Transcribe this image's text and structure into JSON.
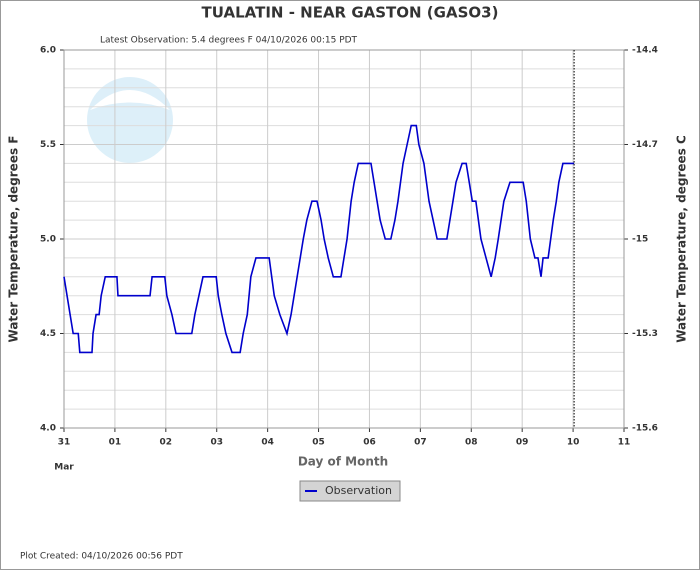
{
  "chart_data": {
    "type": "line",
    "title": "TUALATIN - NEAR GASTON  (GASO3)",
    "subtitle": "Latest Observation: 5.4 degrees F 04/10/2026 00:15 PDT",
    "xlabel": "Day of Month",
    "xlabel_month": "Mar",
    "ylabel": "Water Temperature, degrees F",
    "y2label": "Water Temperature, degrees C",
    "footer": "Plot Created: 04/10/2026 00:56 PDT",
    "xlim": [
      0,
      11
    ],
    "xticks": [
      {
        "value": 0,
        "label": "31"
      },
      {
        "value": 1,
        "label": "01"
      },
      {
        "value": 2,
        "label": "02"
      },
      {
        "value": 3,
        "label": "03"
      },
      {
        "value": 4,
        "label": "04"
      },
      {
        "value": 5,
        "label": "05"
      },
      {
        "value": 6,
        "label": "06"
      },
      {
        "value": 7,
        "label": "07"
      },
      {
        "value": 8,
        "label": "08"
      },
      {
        "value": 9,
        "label": "09"
      },
      {
        "value": 10,
        "label": "10"
      },
      {
        "value": 11,
        "label": "11"
      }
    ],
    "ylim": [
      4.0,
      6.0
    ],
    "yticks": [
      {
        "value": 4.0,
        "label": "4.0"
      },
      {
        "value": 4.5,
        "label": "4.5"
      },
      {
        "value": 5.0,
        "label": "5.0"
      },
      {
        "value": 5.5,
        "label": "5.5"
      },
      {
        "value": 6.0,
        "label": "6.0"
      }
    ],
    "yminor": [
      4.1,
      4.2,
      4.3,
      4.4,
      4.6,
      4.7,
      4.8,
      4.9,
      5.1,
      5.2,
      5.3,
      5.4,
      5.6,
      5.7,
      5.8,
      5.9
    ],
    "y2lim": [
      -15.6,
      -14.4
    ],
    "y2ticks": [
      -15.6,
      -15.3,
      -15,
      -14.7,
      -14.4
    ],
    "grid": true,
    "latest_x": 10.02,
    "series": [
      {
        "name": "Observation",
        "color": "#0000cc",
        "x": [
          0,
          0.12,
          0.18,
          0.28,
          0.31,
          0.55,
          0.57,
          0.63,
          0.69,
          0.73,
          0.81,
          1.04,
          1.06,
          1.69,
          1.73,
          1.98,
          2.02,
          2.12,
          2.2,
          2.51,
          2.57,
          2.65,
          2.73,
          2.99,
          3.03,
          3.1,
          3.18,
          3.3,
          3.46,
          3.52,
          3.6,
          3.67,
          3.77,
          4.03,
          4.13,
          4.24,
          4.38,
          4.46,
          4.58,
          4.7,
          4.77,
          4.87,
          4.97,
          5.05,
          5.11,
          5.19,
          5.29,
          5.44,
          5.5,
          5.56,
          5.64,
          5.7,
          5.78,
          6.03,
          6.09,
          6.15,
          6.21,
          6.31,
          6.42,
          6.5,
          6.56,
          6.66,
          6.74,
          6.82,
          6.92,
          6.97,
          7.07,
          7.17,
          7.25,
          7.33,
          7.52,
          7.58,
          7.64,
          7.7,
          7.82,
          7.9,
          7.96,
          8.02,
          8.09,
          8.19,
          8.29,
          8.39,
          8.47,
          8.53,
          8.64,
          8.76,
          9.02,
          9.08,
          9.16,
          9.25,
          9.31,
          9.37,
          9.41,
          9.51,
          9.61,
          9.67,
          9.72,
          9.8,
          10.02
        ],
        "values": [
          4.8,
          4.6,
          4.5,
          4.5,
          4.4,
          4.4,
          4.5,
          4.6,
          4.6,
          4.7,
          4.8,
          4.8,
          4.7,
          4.7,
          4.8,
          4.8,
          4.7,
          4.6,
          4.5,
          4.5,
          4.6,
          4.7,
          4.8,
          4.8,
          4.7,
          4.6,
          4.5,
          4.4,
          4.4,
          4.5,
          4.6,
          4.8,
          4.9,
          4.9,
          4.7,
          4.6,
          4.5,
          4.6,
          4.8,
          5.0,
          5.1,
          5.2,
          5.2,
          5.1,
          5.0,
          4.9,
          4.8,
          4.8,
          4.9,
          5.0,
          5.2,
          5.3,
          5.4,
          5.4,
          5.3,
          5.2,
          5.1,
          5.0,
          5.0,
          5.1,
          5.2,
          5.4,
          5.5,
          5.6,
          5.6,
          5.5,
          5.4,
          5.2,
          5.1,
          5.0,
          5.0,
          5.1,
          5.2,
          5.3,
          5.4,
          5.4,
          5.3,
          5.2,
          5.2,
          5.0,
          4.9,
          4.8,
          4.9,
          5.0,
          5.2,
          5.3,
          5.3,
          5.2,
          5.0,
          4.9,
          4.9,
          4.8,
          4.9,
          4.9,
          5.1,
          5.2,
          5.3,
          5.4,
          5.4
        ]
      }
    ]
  }
}
